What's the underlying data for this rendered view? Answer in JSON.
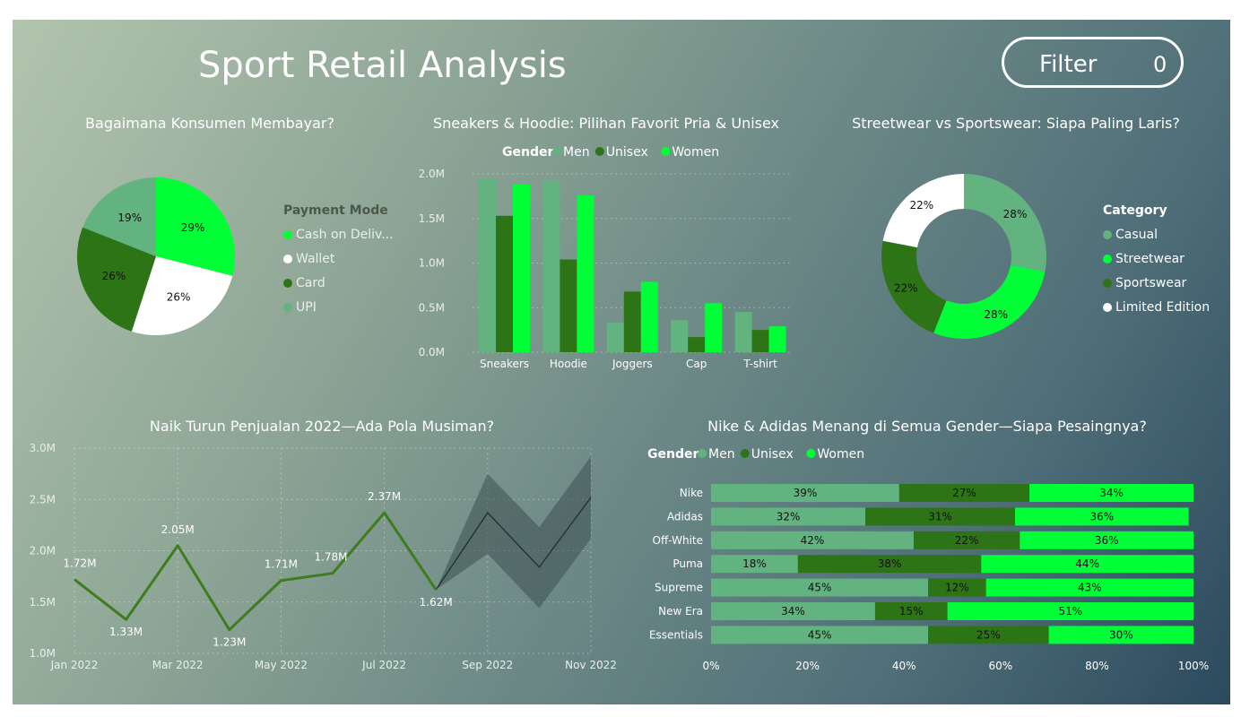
{
  "header": {
    "title": "Sport Retail Analysis",
    "filter_label": "Filter",
    "filter_count": "0"
  },
  "colors": {
    "men": "#62b380",
    "unisex": "#2d7416",
    "women": "#00ff37",
    "white": "#ffffff",
    "line": "#3e7c1e"
  },
  "charts": {
    "payment": {
      "title": "Bagaimana Konsumen Membayar?"
    },
    "gender_product": {
      "title": "Sneakers & Hoodie: Pilihan Favorit Pria & Unisex"
    },
    "category": {
      "title": "Streetwear vs Sportswear: Siapa Paling Laris?"
    },
    "monthly": {
      "title": "Naik Turun Penjualan 2022—Ada Pola Musiman?"
    },
    "brand": {
      "title": "Nike & Adidas Menang di Semua Gender—Siapa Pesaingnya?"
    }
  },
  "chart_data": [
    {
      "id": "payment",
      "type": "pie",
      "legend_title": "Payment Mode",
      "legend_position": "right",
      "labels": [
        "Cash on Deliv...",
        "Wallet",
        "Card",
        "UPI"
      ],
      "values": [
        29,
        26,
        26,
        19
      ],
      "value_labels": [
        "29%",
        "26%",
        "26%",
        "19%"
      ],
      "colors": [
        "#00ff37",
        "#ffffff",
        "#2d7416",
        "#62b380"
      ]
    },
    {
      "id": "gender_product",
      "type": "bar",
      "legend_title": "Gender",
      "legend_position": "top",
      "categories": [
        "Sneakers",
        "Hoodie",
        "Joggers",
        "Cap",
        "T-shirt"
      ],
      "series": [
        {
          "name": "Men",
          "color": "#62b380",
          "values": [
            1.95,
            1.93,
            0.33,
            0.36,
            0.45
          ]
        },
        {
          "name": "Unisex",
          "color": "#2d7416",
          "values": [
            1.53,
            1.04,
            0.68,
            0.17,
            0.25
          ]
        },
        {
          "name": "Women",
          "color": "#00ff37",
          "values": [
            1.88,
            1.76,
            0.79,
            0.55,
            0.29
          ]
        }
      ],
      "ylim": [
        0,
        2.0
      ],
      "yticks": [
        "0.0M",
        "0.5M",
        "1.0M",
        "1.5M",
        "2.0M"
      ],
      "grid": true
    },
    {
      "id": "category",
      "type": "pie",
      "variant": "donut",
      "legend_title": "Category",
      "legend_position": "right",
      "labels": [
        "Casual",
        "Streetwear",
        "Sportswear",
        "Limited Edition"
      ],
      "values": [
        28,
        28,
        22,
        22
      ],
      "value_labels": [
        "28%",
        "28%",
        "22%",
        "22%"
      ],
      "colors": [
        "#62b380",
        "#00ff37",
        "#2d7416",
        "#ffffff"
      ]
    },
    {
      "id": "monthly",
      "type": "line",
      "x": [
        "2022-01",
        "2022-02",
        "2022-03",
        "2022-04",
        "2022-05",
        "2022-06",
        "2022-07",
        "2022-08"
      ],
      "values": [
        1.72,
        1.33,
        2.05,
        1.23,
        1.71,
        1.78,
        2.37,
        1.62
      ],
      "value_labels": [
        "1.72M",
        "1.33M",
        "2.05M",
        "1.23M",
        "1.71M",
        "1.78M",
        "2.37M",
        "1.62M"
      ],
      "forecast": {
        "x": [
          "2022-08",
          "2022-09",
          "2022-10",
          "2022-11"
        ],
        "values": [
          1.62,
          2.37,
          1.84,
          2.52
        ],
        "upper": [
          1.62,
          2.75,
          2.23,
          2.92
        ],
        "lower": [
          1.62,
          1.97,
          1.44,
          2.12
        ]
      },
      "xticks": [
        "Jan 2022",
        "Mar 2022",
        "May 2022",
        "Jul 2022",
        "Sep 2022",
        "Nov 2022"
      ],
      "xtick_months": [
        0,
        2,
        4,
        6,
        8,
        10
      ],
      "ylim": [
        1.0,
        3.0
      ],
      "yticks": [
        "1.0M",
        "1.5M",
        "2.0M",
        "2.5M",
        "3.0M"
      ],
      "grid": true
    },
    {
      "id": "brand",
      "type": "bar",
      "orientation": "horizontal",
      "stacked": "100%",
      "legend_title": "Gender",
      "legend_position": "top",
      "categories": [
        "Nike",
        "Adidas",
        "Off-White",
        "Puma",
        "Supreme",
        "New Era",
        "Essentials"
      ],
      "series": [
        {
          "name": "Men",
          "color": "#62b380",
          "values": [
            39,
            32,
            42,
            18,
            45,
            34,
            45
          ]
        },
        {
          "name": "Unisex",
          "color": "#2d7416",
          "values": [
            27,
            31,
            22,
            38,
            12,
            15,
            25
          ]
        },
        {
          "name": "Women",
          "color": "#00ff37",
          "values": [
            34,
            36,
            36,
            44,
            43,
            51,
            30
          ]
        }
      ],
      "xlim": [
        0,
        100
      ],
      "xticks": [
        "0%",
        "20%",
        "40%",
        "60%",
        "80%",
        "100%"
      ]
    }
  ]
}
